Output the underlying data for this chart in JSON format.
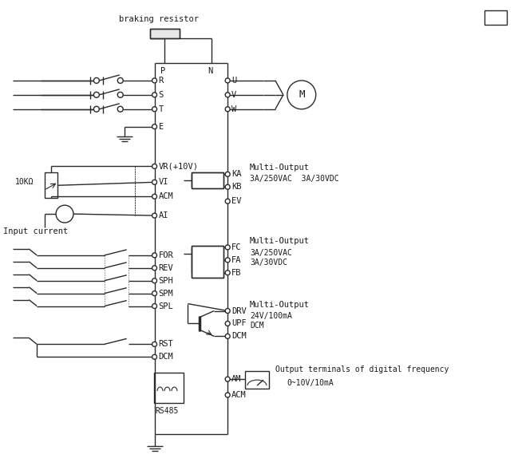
{
  "bg_color": "#ffffff",
  "line_color": "#2a2a2a",
  "text_color": "#1a1a1a",
  "figsize": [
    6.54,
    5.89
  ],
  "dpi": 100,
  "labels": {
    "braking_resistor": "braking resistor",
    "R": "R",
    "S": "S",
    "T": "T",
    "E": "E",
    "VR": "VR(+10V)",
    "VI": "VI",
    "ACM": "ACM",
    "AI": "AI",
    "FOR": "FOR",
    "REV": "REV",
    "SPH": "SPH",
    "SPM": "SPM",
    "SPL": "SPL",
    "RST": "RST",
    "DCM": "DCM",
    "P": "P",
    "N": "N",
    "U": "U",
    "V": "V",
    "W": "W",
    "M": "M",
    "KA": "KA",
    "KB": "KB",
    "EV": "EV",
    "FC": "FC",
    "FA": "FA",
    "FB": "FB",
    "DRV": "DRV",
    "UPF": "UPF",
    "DCM2": "DCM",
    "AM": "AM",
    "ACM2": "ACM",
    "RS485": "RS485",
    "10KO": "10KΩ",
    "Input_current": "Input current",
    "multi1": "Multi-Output",
    "spec1": "3A/250VAC  3A/30VDC",
    "multi2": "Multi-Output",
    "spec2a": "3A/250VAC",
    "spec2b": "3A/30VDC",
    "multi3": "Multi-Output",
    "spec3": "24V/100mA",
    "output_freq": "Output terminals of digital frequency",
    "freq_range": "0~10V/10mA"
  }
}
